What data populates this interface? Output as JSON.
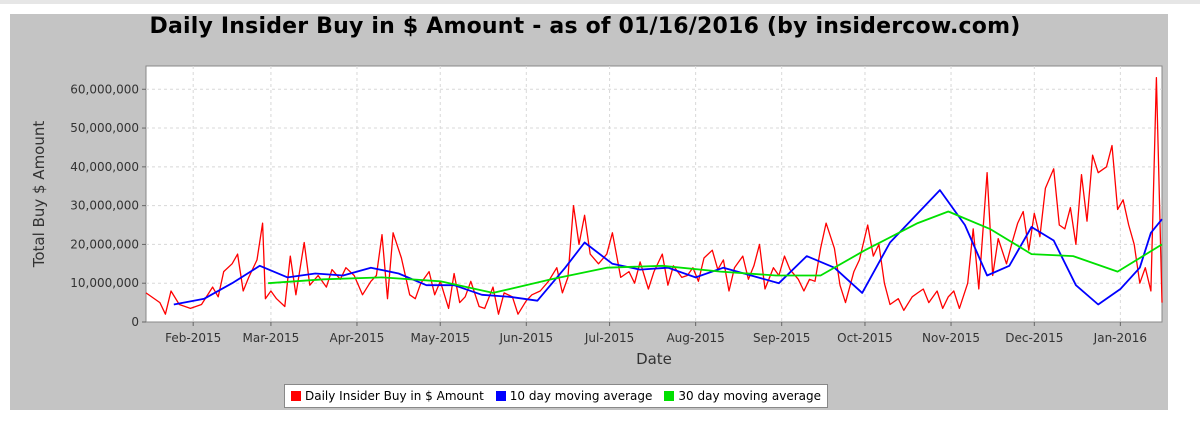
{
  "chart_data": {
    "type": "line",
    "title": "Daily Insider Buy in $ Amount - as of 01/16/2016 (by insidercow.com)",
    "xlabel": "Date",
    "ylabel": "Total Buy $ Amount",
    "x_range": [
      "2015-01-15",
      "2016-01-16"
    ],
    "ylim": [
      0,
      66000000
    ],
    "y_ticks": [
      {
        "value": 0,
        "label": "0"
      },
      {
        "value": 10000000,
        "label": "10,000,000"
      },
      {
        "value": 20000000,
        "label": "20,000,000"
      },
      {
        "value": 30000000,
        "label": "30,000,000"
      },
      {
        "value": 40000000,
        "label": "40,000,000"
      },
      {
        "value": 50000000,
        "label": "50,000,000"
      },
      {
        "value": 60000000,
        "label": "60,000,000"
      }
    ],
    "x_ticks": [
      {
        "date": "2015-02-01",
        "label": "Feb-2015"
      },
      {
        "date": "2015-03-01",
        "label": "Mar-2015"
      },
      {
        "date": "2015-04-01",
        "label": "Apr-2015"
      },
      {
        "date": "2015-05-01",
        "label": "May-2015"
      },
      {
        "date": "2015-06-01",
        "label": "Jun-2015"
      },
      {
        "date": "2015-07-01",
        "label": "Jul-2015"
      },
      {
        "date": "2015-08-01",
        "label": "Aug-2015"
      },
      {
        "date": "2015-09-01",
        "label": "Sep-2015"
      },
      {
        "date": "2015-10-01",
        "label": "Oct-2015"
      },
      {
        "date": "2015-11-01",
        "label": "Nov-2015"
      },
      {
        "date": "2015-12-01",
        "label": "Dec-2015"
      },
      {
        "date": "2016-01-01",
        "label": "Jan-2016"
      }
    ],
    "grid": true,
    "legend_position": "bottom",
    "series": [
      {
        "name": "Daily Insider Buy in $ Amount",
        "color": "#ff0000",
        "points": [
          [
            "2015-01-15",
            7500000
          ],
          [
            "2015-01-20",
            5000000
          ],
          [
            "2015-01-22",
            2000000
          ],
          [
            "2015-01-24",
            8000000
          ],
          [
            "2015-01-27",
            4500000
          ],
          [
            "2015-01-31",
            3500000
          ],
          [
            "2015-02-04",
            4500000
          ],
          [
            "2015-02-08",
            9000000
          ],
          [
            "2015-02-10",
            6500000
          ],
          [
            "2015-02-12",
            13000000
          ],
          [
            "2015-02-15",
            15000000
          ],
          [
            "2015-02-17",
            17500000
          ],
          [
            "2015-02-19",
            8000000
          ],
          [
            "2015-02-21",
            11500000
          ],
          [
            "2015-02-24",
            16000000
          ],
          [
            "2015-02-26",
            25500000
          ],
          [
            "2015-02-27",
            6000000
          ],
          [
            "2015-03-01",
            8000000
          ],
          [
            "2015-03-03",
            6000000
          ],
          [
            "2015-03-06",
            4000000
          ],
          [
            "2015-03-08",
            17000000
          ],
          [
            "2015-03-10",
            7000000
          ],
          [
            "2015-03-13",
            20500000
          ],
          [
            "2015-03-15",
            9500000
          ],
          [
            "2015-03-18",
            12000000
          ],
          [
            "2015-03-21",
            9000000
          ],
          [
            "2015-03-23",
            13500000
          ],
          [
            "2015-03-26",
            11000000
          ],
          [
            "2015-03-28",
            14000000
          ],
          [
            "2015-03-31",
            12000000
          ],
          [
            "2015-04-03",
            7000000
          ],
          [
            "2015-04-06",
            10500000
          ],
          [
            "2015-04-08",
            12000000
          ],
          [
            "2015-04-10",
            22500000
          ],
          [
            "2015-04-12",
            6000000
          ],
          [
            "2015-04-14",
            23000000
          ],
          [
            "2015-04-17",
            16500000
          ],
          [
            "2015-04-20",
            7000000
          ],
          [
            "2015-04-22",
            6000000
          ],
          [
            "2015-04-24",
            10000000
          ],
          [
            "2015-04-27",
            13000000
          ],
          [
            "2015-04-29",
            7000000
          ],
          [
            "2015-05-01",
            10500000
          ],
          [
            "2015-05-04",
            3500000
          ],
          [
            "2015-05-06",
            12500000
          ],
          [
            "2015-05-08",
            5000000
          ],
          [
            "2015-05-10",
            6500000
          ],
          [
            "2015-05-12",
            10500000
          ],
          [
            "2015-05-15",
            4000000
          ],
          [
            "2015-05-17",
            3500000
          ],
          [
            "2015-05-20",
            9000000
          ],
          [
            "2015-05-22",
            2000000
          ],
          [
            "2015-05-24",
            7500000
          ],
          [
            "2015-05-27",
            6500000
          ],
          [
            "2015-05-29",
            2000000
          ],
          [
            "2015-06-01",
            5500000
          ],
          [
            "2015-06-03",
            7000000
          ],
          [
            "2015-06-06",
            8000000
          ],
          [
            "2015-06-09",
            10500000
          ],
          [
            "2015-06-12",
            14000000
          ],
          [
            "2015-06-14",
            7500000
          ],
          [
            "2015-06-16",
            11500000
          ],
          [
            "2015-06-18",
            30000000
          ],
          [
            "2015-06-20",
            20000000
          ],
          [
            "2015-06-22",
            27500000
          ],
          [
            "2015-06-24",
            17500000
          ],
          [
            "2015-06-27",
            15000000
          ],
          [
            "2015-06-30",
            17500000
          ],
          [
            "2015-07-02",
            23000000
          ],
          [
            "2015-07-05",
            11500000
          ],
          [
            "2015-07-08",
            13000000
          ],
          [
            "2015-07-10",
            10000000
          ],
          [
            "2015-07-12",
            15500000
          ],
          [
            "2015-07-15",
            8500000
          ],
          [
            "2015-07-17",
            13000000
          ],
          [
            "2015-07-20",
            17500000
          ],
          [
            "2015-07-22",
            9500000
          ],
          [
            "2015-07-24",
            14500000
          ],
          [
            "2015-07-27",
            11500000
          ],
          [
            "2015-07-29",
            12000000
          ],
          [
            "2015-07-31",
            14000000
          ],
          [
            "2015-08-02",
            10500000
          ],
          [
            "2015-08-04",
            16500000
          ],
          [
            "2015-08-07",
            18500000
          ],
          [
            "2015-08-09",
            13500000
          ],
          [
            "2015-08-11",
            16000000
          ],
          [
            "2015-08-13",
            8000000
          ],
          [
            "2015-08-15",
            14000000
          ],
          [
            "2015-08-18",
            17000000
          ],
          [
            "2015-08-20",
            11000000
          ],
          [
            "2015-08-22",
            14500000
          ],
          [
            "2015-08-24",
            20000000
          ],
          [
            "2015-08-26",
            8500000
          ],
          [
            "2015-08-29",
            14000000
          ],
          [
            "2015-08-31",
            12000000
          ],
          [
            "2015-09-02",
            17000000
          ],
          [
            "2015-09-04",
            13500000
          ],
          [
            "2015-09-07",
            11000000
          ],
          [
            "2015-09-09",
            8000000
          ],
          [
            "2015-09-11",
            11000000
          ],
          [
            "2015-09-13",
            10500000
          ],
          [
            "2015-09-15",
            19000000
          ],
          [
            "2015-09-17",
            25500000
          ],
          [
            "2015-09-20",
            19000000
          ],
          [
            "2015-09-22",
            9500000
          ],
          [
            "2015-09-24",
            5000000
          ],
          [
            "2015-09-27",
            13000000
          ],
          [
            "2015-09-29",
            16000000
          ],
          [
            "2015-10-02",
            25000000
          ],
          [
            "2015-10-04",
            17000000
          ],
          [
            "2015-10-06",
            20000000
          ],
          [
            "2015-10-08",
            10000000
          ],
          [
            "2015-10-10",
            4500000
          ],
          [
            "2015-10-13",
            6000000
          ],
          [
            "2015-10-15",
            3000000
          ],
          [
            "2015-10-18",
            6500000
          ],
          [
            "2015-10-20",
            7500000
          ],
          [
            "2015-10-22",
            8500000
          ],
          [
            "2015-10-24",
            5000000
          ],
          [
            "2015-10-27",
            8000000
          ],
          [
            "2015-10-29",
            3500000
          ],
          [
            "2015-10-31",
            6500000
          ],
          [
            "2015-11-02",
            8000000
          ],
          [
            "2015-11-04",
            3500000
          ],
          [
            "2015-11-07",
            10000000
          ],
          [
            "2015-11-09",
            24000000
          ],
          [
            "2015-11-11",
            8500000
          ],
          [
            "2015-11-14",
            38500000
          ],
          [
            "2015-11-16",
            12000000
          ],
          [
            "2015-11-18",
            21500000
          ],
          [
            "2015-11-21",
            15000000
          ],
          [
            "2015-11-23",
            20500000
          ],
          [
            "2015-11-25",
            25500000
          ],
          [
            "2015-11-27",
            28500000
          ],
          [
            "2015-11-29",
            18500000
          ],
          [
            "2015-12-01",
            28000000
          ],
          [
            "2015-12-03",
            22000000
          ],
          [
            "2015-12-05",
            34500000
          ],
          [
            "2015-12-08",
            39500000
          ],
          [
            "2015-12-10",
            25000000
          ],
          [
            "2015-12-12",
            24000000
          ],
          [
            "2015-12-14",
            29500000
          ],
          [
            "2015-12-16",
            20000000
          ],
          [
            "2015-12-18",
            38000000
          ],
          [
            "2015-12-20",
            26000000
          ],
          [
            "2015-12-22",
            43000000
          ],
          [
            "2015-12-24",
            38500000
          ],
          [
            "2015-12-27",
            40000000
          ],
          [
            "2015-12-29",
            45500000
          ],
          [
            "2015-12-31",
            29000000
          ],
          [
            "2016-01-02",
            31500000
          ],
          [
            "2016-01-04",
            25000000
          ],
          [
            "2016-01-06",
            20000000
          ],
          [
            "2016-01-08",
            10000000
          ],
          [
            "2016-01-10",
            14000000
          ],
          [
            "2016-01-12",
            8000000
          ],
          [
            "2016-01-14",
            63000000
          ],
          [
            "2016-01-16",
            5000000
          ]
        ]
      },
      {
        "name": "10 day moving average",
        "color": "#0000ff",
        "points": [
          [
            "2015-01-25",
            4500000
          ],
          [
            "2015-02-05",
            6000000
          ],
          [
            "2015-02-15",
            10000000
          ],
          [
            "2015-02-25",
            14500000
          ],
          [
            "2015-03-07",
            11500000
          ],
          [
            "2015-03-17",
            12500000
          ],
          [
            "2015-03-27",
            12000000
          ],
          [
            "2015-04-06",
            14000000
          ],
          [
            "2015-04-16",
            12500000
          ],
          [
            "2015-04-26",
            9500000
          ],
          [
            "2015-05-06",
            9500000
          ],
          [
            "2015-05-16",
            7000000
          ],
          [
            "2015-05-26",
            6500000
          ],
          [
            "2015-06-05",
            5500000
          ],
          [
            "2015-06-15",
            14000000
          ],
          [
            "2015-06-22",
            20500000
          ],
          [
            "2015-07-02",
            15000000
          ],
          [
            "2015-07-12",
            13500000
          ],
          [
            "2015-07-22",
            14000000
          ],
          [
            "2015-08-01",
            11500000
          ],
          [
            "2015-08-11",
            14000000
          ],
          [
            "2015-08-21",
            12000000
          ],
          [
            "2015-08-31",
            10000000
          ],
          [
            "2015-09-10",
            17000000
          ],
          [
            "2015-09-20",
            14000000
          ],
          [
            "2015-09-30",
            7500000
          ],
          [
            "2015-10-10",
            20500000
          ],
          [
            "2015-10-20",
            28000000
          ],
          [
            "2015-10-28",
            34000000
          ],
          [
            "2015-11-06",
            25000000
          ],
          [
            "2015-11-14",
            12000000
          ],
          [
            "2015-11-22",
            14500000
          ],
          [
            "2015-11-30",
            24500000
          ],
          [
            "2015-12-08",
            21000000
          ],
          [
            "2015-12-16",
            9500000
          ],
          [
            "2015-12-24",
            4500000
          ],
          [
            "2016-01-01",
            8500000
          ],
          [
            "2016-01-08",
            14000000
          ],
          [
            "2016-01-12",
            23000000
          ],
          [
            "2016-01-16",
            26500000
          ]
        ]
      },
      {
        "name": "30 day moving average",
        "color": "#00e000",
        "points": [
          [
            "2015-02-28",
            10000000
          ],
          [
            "2015-03-20",
            11000000
          ],
          [
            "2015-04-10",
            11500000
          ],
          [
            "2015-05-01",
            10500000
          ],
          [
            "2015-05-20",
            7500000
          ],
          [
            "2015-06-10",
            11000000
          ],
          [
            "2015-06-30",
            14000000
          ],
          [
            "2015-07-20",
            14500000
          ],
          [
            "2015-08-10",
            13000000
          ],
          [
            "2015-08-30",
            12000000
          ],
          [
            "2015-09-15",
            12000000
          ],
          [
            "2015-10-01",
            18500000
          ],
          [
            "2015-10-20",
            25500000
          ],
          [
            "2015-10-31",
            28500000
          ],
          [
            "2015-11-15",
            24000000
          ],
          [
            "2015-11-30",
            17500000
          ],
          [
            "2015-12-15",
            17000000
          ],
          [
            "2015-12-31",
            13000000
          ],
          [
            "2016-01-16",
            20000000
          ]
        ]
      }
    ]
  }
}
